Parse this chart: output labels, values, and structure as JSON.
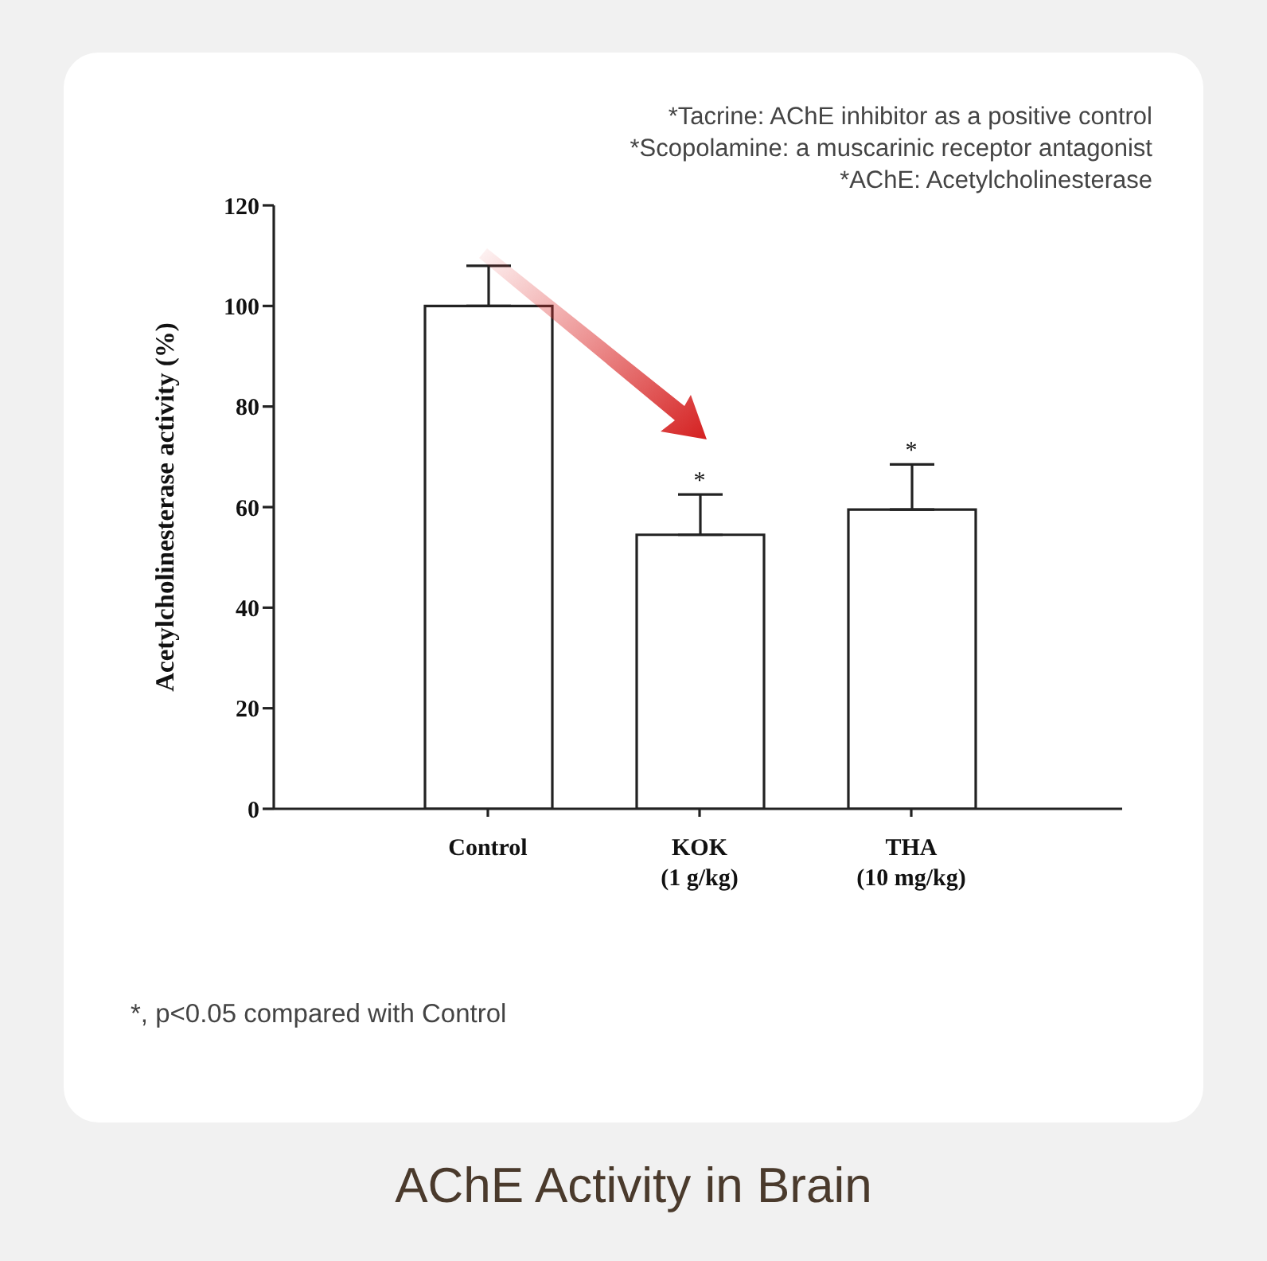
{
  "chart_data": {
    "type": "bar",
    "title": "AChE Activity in Brain",
    "ylabel": "Acetylcholinesterase activity (%)",
    "categories": [
      "Control",
      "KOK\n(1 g/kg)",
      "THA\n(10 mg/kg)"
    ],
    "values": [
      100,
      54.5,
      59.5
    ],
    "errors": [
      8,
      8,
      9
    ],
    "color": "#ffffff",
    "ylim": [
      0,
      120
    ],
    "yticks": [
      0,
      20,
      40,
      60,
      80,
      100,
      120
    ],
    "grid": false,
    "legend": false,
    "annotations": [
      "*Tacrine: AChE inhibitor as a positive control",
      "*Scopolamine: a muscarinic receptor antagonist",
      "*AChE: Acetylcholinesterase",
      {
        "text": "*",
        "x": "KOK\n(1 g/kg)",
        "y": 62.5
      },
      {
        "text": "*",
        "x": "THA\n(10 mg/kg)",
        "y": 68.5
      },
      "*, p<0.05 compared with Control"
    ]
  }
}
